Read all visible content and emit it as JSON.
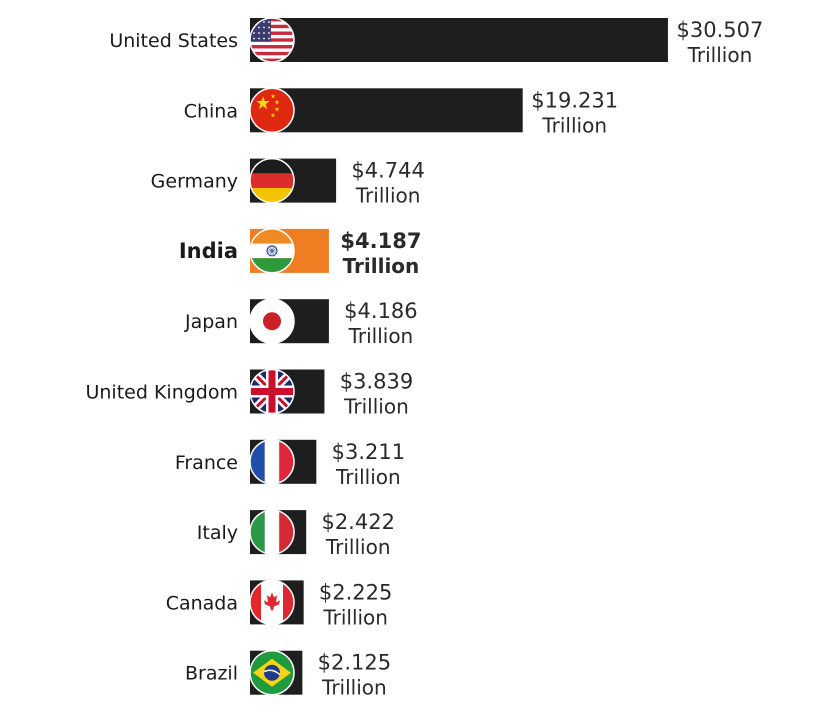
{
  "chart_data": {
    "type": "bar",
    "orientation": "horizontal",
    "categories": [
      "United States",
      "China",
      "Germany",
      "India",
      "Japan",
      "United Kingdom",
      "France",
      "Italy",
      "Canada",
      "Brazil"
    ],
    "values": [
      30.507,
      19.231,
      4.744,
      4.187,
      4.186,
      3.839,
      3.211,
      2.422,
      2.225,
      2.125
    ],
    "value_labels": [
      "$30.507",
      "$19.231",
      "$4.744",
      "$4.187",
      "$4.186",
      "$3.839",
      "$3.211",
      "$2.422",
      "$2.225",
      "$2.125"
    ],
    "unit_label": "Trillion",
    "highlight_category": "India",
    "colors": {
      "bar": "#1e1e1e",
      "highlight_bar": "#ef7d22",
      "label": "#1a1a1a",
      "value_label": "#2a2a2a"
    },
    "flag_icons": [
      "us-flag-icon",
      "china-flag-icon",
      "germany-flag-icon",
      "india-flag-icon",
      "japan-flag-icon",
      "uk-flag-icon",
      "france-flag-icon",
      "italy-flag-icon",
      "canada-flag-icon",
      "brazil-flag-icon"
    ],
    "title": "",
    "xlabel": "",
    "ylabel": "",
    "grid": false,
    "legend": "none"
  }
}
